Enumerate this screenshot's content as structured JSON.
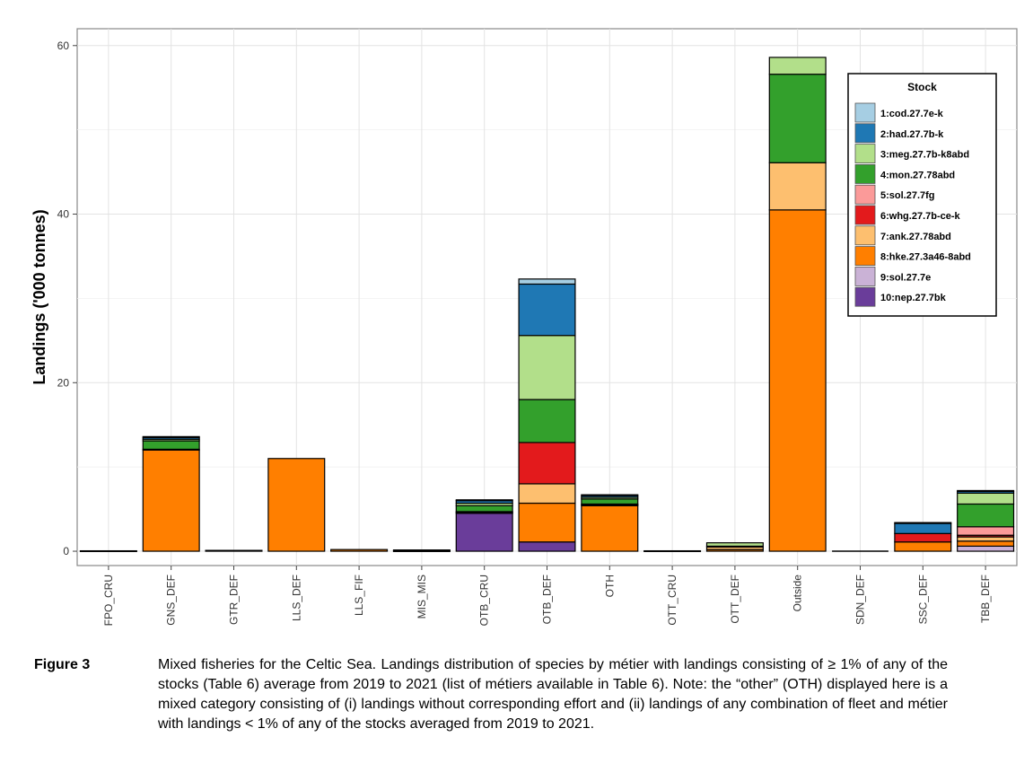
{
  "figure": {
    "label": "Figure 3",
    "caption": "Mixed fisheries for the Celtic Sea. Landings distribution of species by métier with landings consisting of ≥ 1% of any of the stocks (Table 6) average from 2019 to 2021 (list of métiers available in Table 6). Note: the “other” (OTH) displayed here is a mixed category consisting of (i) landings without corresponding effort and (ii) landings of any combination of fleet and métier with landings < 1% of any of the stocks averaged from 2019 to 2021."
  },
  "chart_data": {
    "type": "bar",
    "stacked": true,
    "ylabel": "Landings ('000 tonnes)",
    "xlabel": "",
    "ylim": [
      -1.7,
      62
    ],
    "yticks": [
      0,
      20,
      40,
      60
    ],
    "grid": true,
    "legend": {
      "title": "Stock",
      "position": "top-right"
    },
    "categories": [
      "FPO_CRU",
      "GNS_DEF",
      "GTR_DEF",
      "LLS_DEF",
      "LLS_FIF",
      "MIS_MIS",
      "OTB_CRU",
      "OTB_DEF",
      "OTH",
      "OTT_CRU",
      "OTT_DEF",
      "Outside",
      "SDN_DEF",
      "SSC_DEF",
      "TBB_DEF"
    ],
    "series": [
      {
        "name": "10:nep.27.7bk",
        "color": "#6a3d9a",
        "values": [
          0.05,
          0,
          0,
          0,
          0,
          0.05,
          4.5,
          1.1,
          0,
          0.05,
          0,
          0,
          0,
          0,
          0
        ]
      },
      {
        "name": "9:sol.27.7e",
        "color": "#cab2d6",
        "values": [
          0,
          0,
          0,
          0,
          0,
          0,
          0,
          0,
          0,
          0,
          0,
          0,
          0,
          0,
          0.6
        ]
      },
      {
        "name": "8:hke.27.3a46-8abd",
        "color": "#ff7f00",
        "values": [
          0,
          12.0,
          0.1,
          11.0,
          0.2,
          0.1,
          0.1,
          4.6,
          5.4,
          0,
          0.2,
          40.5,
          0,
          1.1,
          0.6
        ]
      },
      {
        "name": "7:ank.27.78abd",
        "color": "#fdbf6f",
        "values": [
          0,
          0.1,
          0,
          0,
          0,
          0,
          0,
          2.3,
          0.1,
          0,
          0.3,
          5.6,
          0,
          0,
          0.5
        ]
      },
      {
        "name": "6:whg.27.7b-ce-k",
        "color": "#e31a1c",
        "values": [
          0,
          0,
          0,
          0,
          0,
          0,
          0.1,
          4.9,
          0.1,
          0,
          0,
          0,
          0,
          1.0,
          0.2
        ]
      },
      {
        "name": "5:sol.27.7fg",
        "color": "#fb9a99",
        "values": [
          0,
          0,
          0,
          0,
          0,
          0,
          0,
          0,
          0,
          0,
          0,
          0,
          0,
          0,
          1.0
        ]
      },
      {
        "name": "4:mon.27.78abd",
        "color": "#33a02c",
        "values": [
          0,
          1.0,
          0,
          0,
          0,
          0,
          0.7,
          5.1,
          0.6,
          0,
          0.1,
          10.5,
          0,
          0,
          2.7
        ]
      },
      {
        "name": "3:meg.27.7b-k8abd",
        "color": "#b2df8a",
        "values": [
          0,
          0.2,
          0,
          0,
          0,
          0,
          0.3,
          7.6,
          0.2,
          0,
          0.4,
          2.0,
          0,
          0,
          1.3
        ]
      },
      {
        "name": "2:had.27.7b-k",
        "color": "#1f78b4",
        "values": [
          0,
          0.2,
          0,
          0,
          0,
          0,
          0.3,
          6.1,
          0.2,
          0,
          0,
          0,
          0,
          1.2,
          0.2
        ]
      },
      {
        "name": "1:cod.27.7e-k",
        "color": "#a6cee3",
        "values": [
          0,
          0.1,
          0,
          0,
          0,
          0,
          0.1,
          0.6,
          0.1,
          0,
          0,
          0,
          0,
          0.1,
          0.1
        ]
      }
    ],
    "legend_order": [
      "1:cod.27.7e-k",
      "2:had.27.7b-k",
      "3:meg.27.7b-k8abd",
      "4:mon.27.78abd",
      "5:sol.27.7fg",
      "6:whg.27.7b-ce-k",
      "7:ank.27.78abd",
      "8:hke.27.3a46-8abd",
      "9:sol.27.7e",
      "10:nep.27.7bk"
    ]
  }
}
